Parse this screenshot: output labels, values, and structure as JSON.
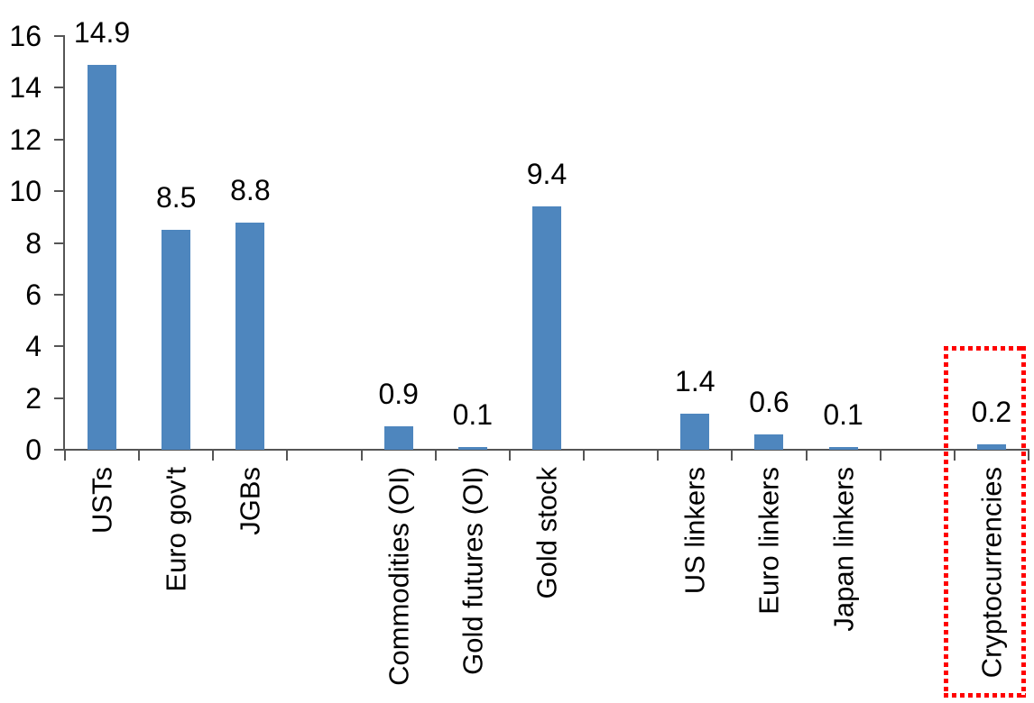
{
  "chart_data": {
    "type": "bar",
    "title": "",
    "categories": [
      "USTs",
      "Euro gov't",
      "JGBs",
      "Commodities (OI)",
      "Gold futures (OI)",
      "Gold stock",
      "US linkers",
      "Euro linkers",
      "Japan linkers",
      "Cryptocurrencies"
    ],
    "values": [
      14.9,
      8.5,
      8.8,
      0.9,
      0.1,
      9.4,
      1.4,
      0.6,
      0.1,
      0.2
    ],
    "slots": [
      1,
      2,
      3,
      5,
      6,
      7,
      9,
      10,
      11,
      13
    ],
    "n_slots": 13,
    "groups": [
      [
        "USTs",
        "Euro gov't",
        "JGBs"
      ],
      [
        "Commodities (OI)",
        "Gold futures (OI)",
        "Gold stock"
      ],
      [
        "US linkers",
        "Euro linkers",
        "Japan linkers"
      ],
      [
        "Cryptocurrencies"
      ]
    ],
    "xlabel": "",
    "ylabel": "",
    "ylim": [
      0,
      16
    ],
    "yticks": [
      0,
      2,
      4,
      6,
      8,
      10,
      12,
      14,
      16
    ],
    "grid": false,
    "legend": "none",
    "value_labels_shown": true,
    "bar_color": "#4e86be",
    "axis_color": "#555555",
    "text_color": "#000000",
    "highlight": {
      "target": "Cryptocurrencies",
      "shape": "dotted-rectangle",
      "color": "#ff0000",
      "value": 0.2
    }
  }
}
